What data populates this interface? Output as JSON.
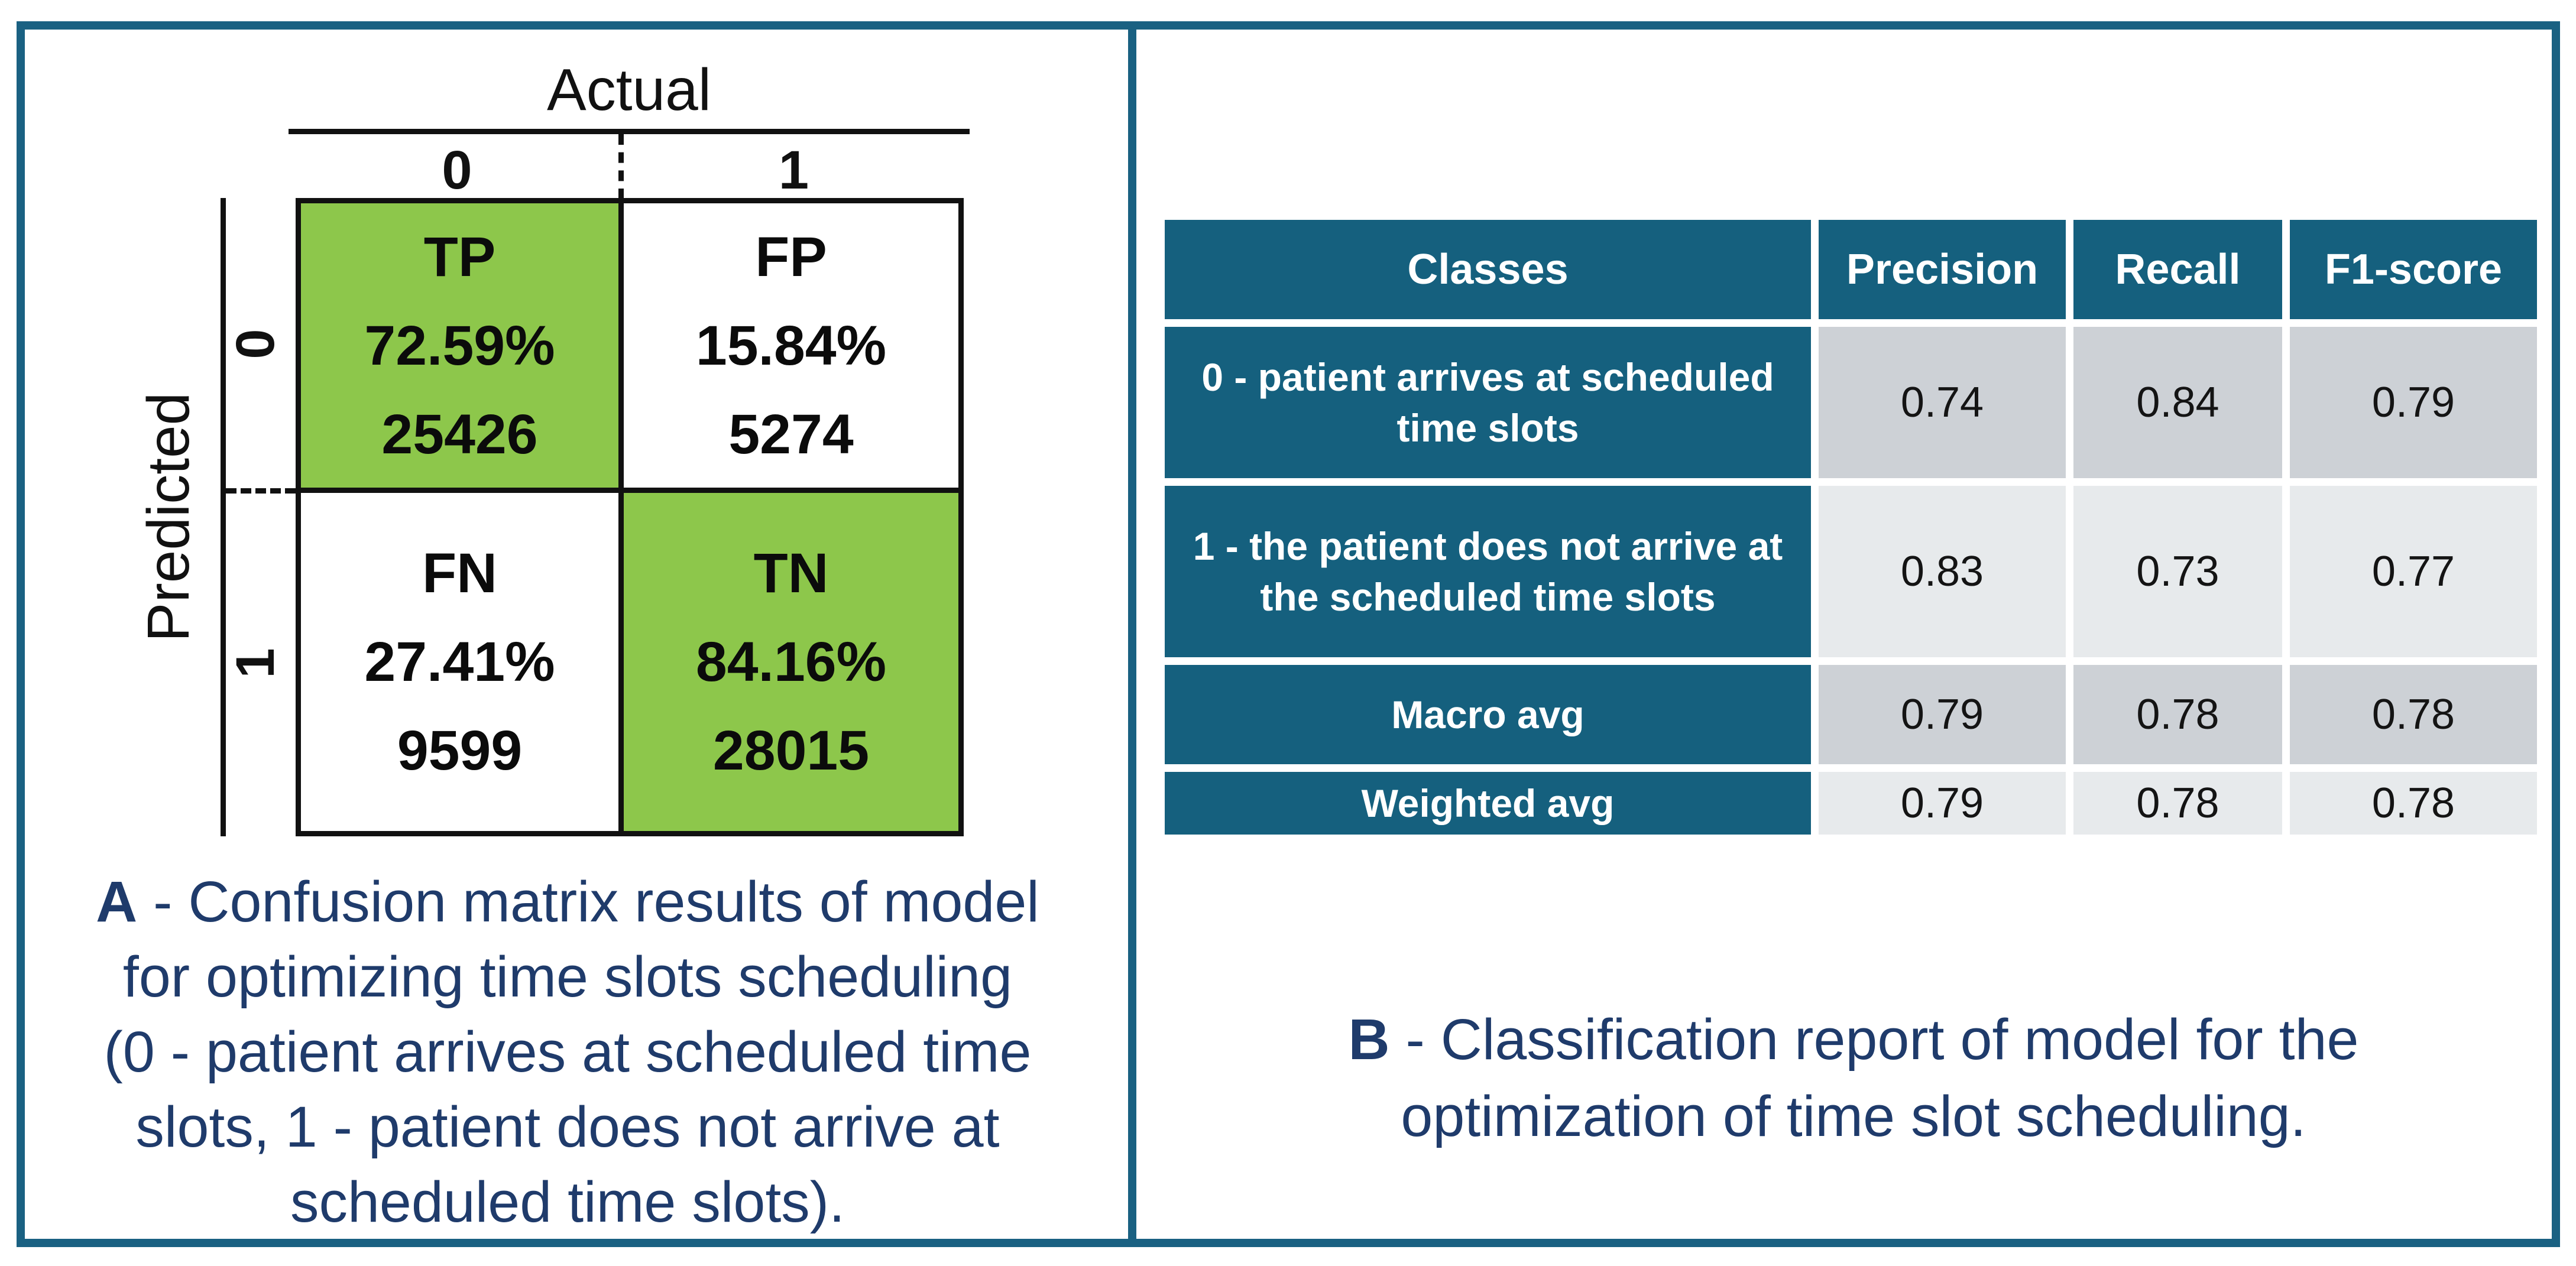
{
  "colors": {
    "frame_teal": "#1A6182",
    "table_header_teal": "#15607E",
    "matrix_green": "#8DC74B",
    "caption_navy": "#1F3B6B",
    "row_gray_dark": "#CDD1D6",
    "row_gray_light": "#E7EAEC",
    "line_black": "#111111"
  },
  "panelA": {
    "matrix": {
      "axis_x_title": "Actual",
      "axis_y_title": "Predicted",
      "col_labels": [
        "0",
        "1"
      ],
      "row_labels": [
        "0",
        "1"
      ],
      "cells": {
        "tp": {
          "label": "TP",
          "percent": "72.59%",
          "count": "25426"
        },
        "fp": {
          "label": "FP",
          "percent": "15.84%",
          "count": "5274"
        },
        "fn": {
          "label": "FN",
          "percent": "27.41%",
          "count": "9599"
        },
        "tn": {
          "label": "TN",
          "percent": "84.16%",
          "count": "28015"
        }
      }
    },
    "caption": {
      "prefix": "A",
      "line1_rest": " - Confusion matrix results of model",
      "line2": "for optimizing time slots scheduling",
      "line3": "(0 - patient arrives at scheduled time",
      "line4": "slots, 1 - patient does not arrive at",
      "line5": "scheduled time slots)."
    }
  },
  "panelB": {
    "table": {
      "headers": [
        "Classes",
        "Precision",
        "Recall",
        "F1-score"
      ],
      "rows": [
        {
          "label": "0 - patient arrives at scheduled time slots",
          "precision": "0.74",
          "recall": "0.84",
          "f1": "0.79"
        },
        {
          "label": "1 - the patient does not arrive at the scheduled time slots",
          "precision": "0.83",
          "recall": "0.73",
          "f1": "0.77"
        },
        {
          "label": "Macro avg",
          "precision": "0.79",
          "recall": "0.78",
          "f1": "0.78"
        },
        {
          "label": "Weighted avg",
          "precision": "0.79",
          "recall": "0.78",
          "f1": "0.78"
        }
      ]
    },
    "caption": {
      "prefix": "B",
      "line1_rest": " - Classification report of model for the",
      "line2": "optimization of time slot scheduling."
    }
  },
  "chart_data": [
    {
      "type": "heatmap",
      "title": "Confusion matrix of model for optimizing time slots scheduling",
      "xlabel": "Actual",
      "ylabel": "Predicted",
      "x_categories": [
        "0",
        "1"
      ],
      "y_categories": [
        "0",
        "1"
      ],
      "cells": [
        {
          "quadrant": "TP",
          "predicted": "0",
          "actual": "0",
          "percent": 72.59,
          "count": 25426,
          "highlighted_green": true
        },
        {
          "quadrant": "FP",
          "predicted": "0",
          "actual": "1",
          "percent": 15.84,
          "count": 5274,
          "highlighted_green": false
        },
        {
          "quadrant": "FN",
          "predicted": "1",
          "actual": "0",
          "percent": 27.41,
          "count": 9599,
          "highlighted_green": false
        },
        {
          "quadrant": "TN",
          "predicted": "1",
          "actual": "1",
          "percent": 84.16,
          "count": 28015,
          "highlighted_green": true
        }
      ]
    },
    {
      "type": "table",
      "title": "Classification report of model for the optimization of time slot scheduling",
      "columns": [
        "Classes",
        "Precision",
        "Recall",
        "F1-score"
      ],
      "rows": [
        [
          "0 - patient arrives at scheduled time slots",
          0.74,
          0.84,
          0.79
        ],
        [
          "1 - the patient does not arrive at the scheduled time slots",
          0.83,
          0.73,
          0.77
        ],
        [
          "Macro avg",
          0.79,
          0.78,
          0.78
        ],
        [
          "Weighted avg",
          0.79,
          0.78,
          0.78
        ]
      ]
    }
  ]
}
